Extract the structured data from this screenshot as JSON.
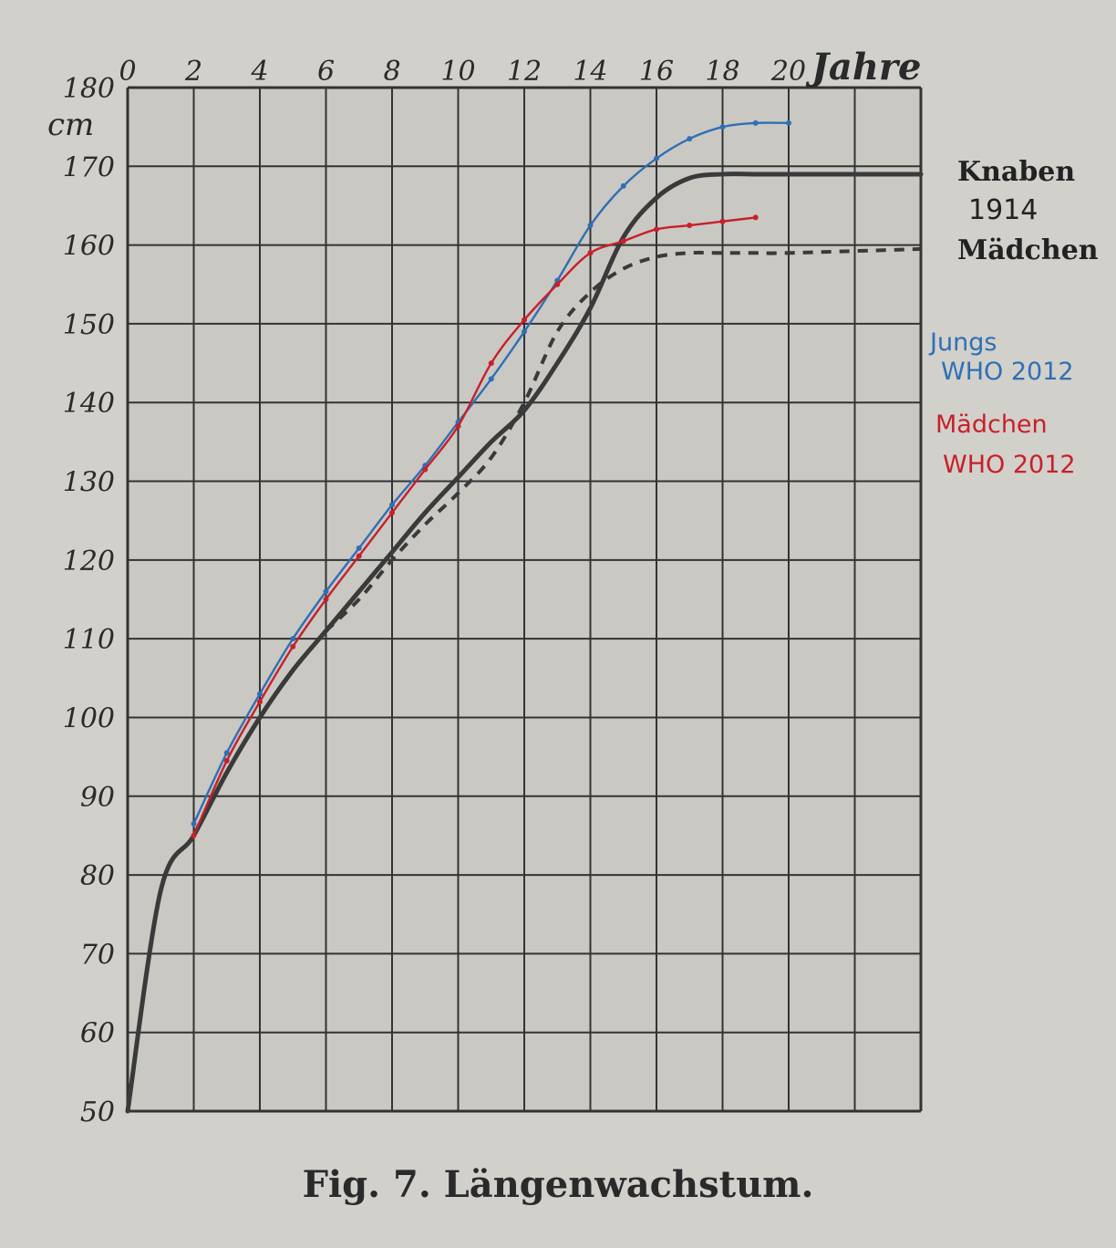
{
  "chart_data": {
    "type": "line",
    "title": "Fig. 7.   Längenwachstum.",
    "xlabel": "Jahre",
    "ylabel": "cm",
    "xlim": [
      0,
      24
    ],
    "ylim": [
      50,
      180
    ],
    "x_ticks": [
      "0",
      "2",
      "4",
      "6",
      "8",
      "10",
      "12",
      "14",
      "16",
      "18",
      "20"
    ],
    "y_ticks": [
      "50",
      "60",
      "70",
      "80",
      "90",
      "100",
      "110",
      "120",
      "130",
      "140",
      "150",
      "160",
      "170",
      "180"
    ],
    "grid": true,
    "legend": {
      "knaben": "Knaben",
      "year": "1914",
      "maedchen": "Mädchen",
      "jungs_who_1": "Jungs",
      "jungs_who_2": "WHO 2012",
      "maedchen_who_1": "Mädchen",
      "maedchen_who_2": "WHO 2012"
    },
    "series": [
      {
        "name": "Knaben 1914",
        "color": "#3a3a3a",
        "style": "solid-thick",
        "x": [
          0,
          1,
          2,
          3,
          4,
          5,
          6,
          7,
          8,
          9,
          10,
          11,
          12,
          13,
          14,
          15,
          16,
          17,
          18,
          19,
          20,
          24
        ],
        "y": [
          50,
          78,
          85,
          93,
          100,
          106,
          111,
          116,
          121,
          126,
          130.5,
          135,
          139,
          145,
          152,
          161,
          166,
          168.5,
          169,
          169,
          169,
          169
        ]
      },
      {
        "name": "Mädchen 1914",
        "color": "#3a3a3a",
        "style": "dashed",
        "x": [
          6,
          7,
          8,
          9,
          10,
          11,
          12,
          13,
          14,
          15,
          16,
          17,
          18,
          19,
          20,
          24
        ],
        "y": [
          111,
          115,
          120,
          124.5,
          128.5,
          133,
          140,
          149,
          154,
          157,
          158.5,
          159,
          159,
          159,
          159,
          159.5
        ]
      },
      {
        "name": "Jungs WHO 2012",
        "color": "#2f6fb5",
        "style": "solid-thin",
        "x": [
          2,
          3,
          4,
          5,
          6,
          7,
          8,
          9,
          10,
          11,
          12,
          13,
          14,
          15,
          16,
          17,
          18,
          19,
          20
        ],
        "y": [
          86.5,
          95.5,
          103,
          110,
          116,
          121.5,
          127,
          132,
          137.5,
          143,
          149,
          155.5,
          162.5,
          167.5,
          171,
          173.5,
          175,
          175.5,
          175.5
        ]
      },
      {
        "name": "Mädchen WHO 2012",
        "color": "#c8202a",
        "style": "solid-thin",
        "x": [
          2,
          3,
          4,
          5,
          6,
          7,
          8,
          9,
          10,
          11,
          12,
          13,
          14,
          15,
          16,
          17,
          18,
          19
        ],
        "y": [
          85,
          94.5,
          102,
          109,
          115,
          120.5,
          126,
          131.5,
          137,
          145,
          150.5,
          155,
          159,
          160.5,
          162,
          162.5,
          163,
          163.5
        ]
      }
    ]
  }
}
